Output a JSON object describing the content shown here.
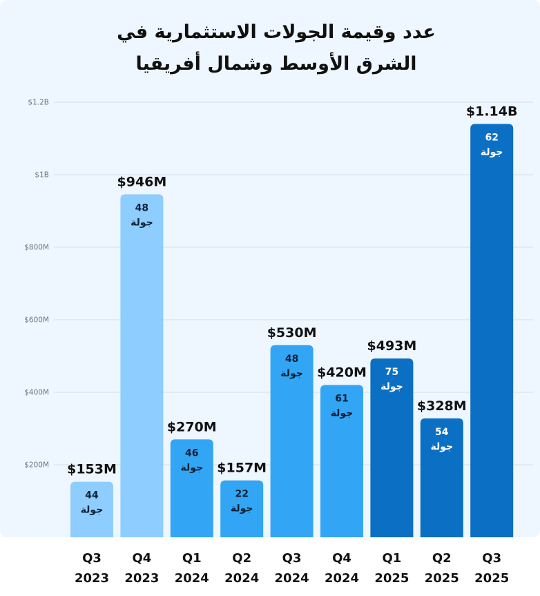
{
  "chart_data": {
    "type": "bar",
    "title_line1": "عدد وقيمة  الجولات الاستثمارية في",
    "title_line2": "الشرق الأوسط وشمال أفريقيا",
    "xlabel": "",
    "ylabel": "",
    "ylim": [
      0,
      1200
    ],
    "y_unit": "$M",
    "y_ticks": [
      {
        "value": 200,
        "label": "$200M"
      },
      {
        "value": 400,
        "label": "$400M"
      },
      {
        "value": 600,
        "label": "$600M"
      },
      {
        "value": 800,
        "label": "$800M"
      },
      {
        "value": 1000,
        "label": "$1B"
      },
      {
        "value": 1200,
        "label": "$1.2B"
      }
    ],
    "grid": true,
    "legend": "none",
    "round_word": "جولة",
    "bars": [
      {
        "quarter": "Q3",
        "year": "2023",
        "value": 153,
        "label": "$153M",
        "rounds": "44",
        "color": "#8ecdff"
      },
      {
        "quarter": "Q4",
        "year": "2023",
        "value": 946,
        "label": "$946M",
        "rounds": "48",
        "color": "#8ecdff"
      },
      {
        "quarter": "Q1",
        "year": "2024",
        "value": 270,
        "label": "$270M",
        "rounds": "46",
        "color": "#33a5f5"
      },
      {
        "quarter": "Q2",
        "year": "2024",
        "value": 157,
        "label": "$157M",
        "rounds": "22",
        "color": "#33a5f5"
      },
      {
        "quarter": "Q3",
        "year": "2024",
        "value": 530,
        "label": "$530M",
        "rounds": "48",
        "color": "#33a5f5"
      },
      {
        "quarter": "Q4",
        "year": "2024",
        "value": 420,
        "label": "$420M",
        "rounds": "61",
        "color": "#33a5f5"
      },
      {
        "quarter": "Q1",
        "year": "2025",
        "value": 493,
        "label": "$493M",
        "rounds": "75",
        "color": "#0b6fc3"
      },
      {
        "quarter": "Q2",
        "year": "2025",
        "value": 328,
        "label": "$328M",
        "rounds": "54",
        "color": "#0b6fc3"
      },
      {
        "quarter": "Q3",
        "year": "2025",
        "value": 1140,
        "label": "$1.14B",
        "rounds": "62",
        "color": "#0b6fc3"
      }
    ],
    "colors": {
      "panel": "#eef6ff",
      "grid": "#d6dde5",
      "text": "#111111",
      "tick": "#6b7480",
      "inner_text": "#0c2033"
    }
  }
}
